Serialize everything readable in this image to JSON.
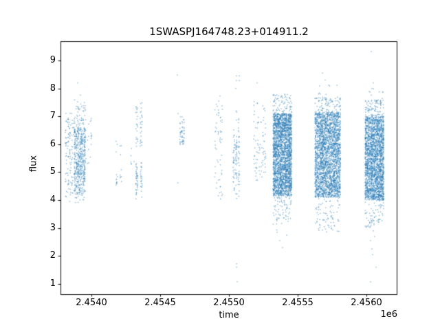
{
  "figure": {
    "background": "#ffffff"
  },
  "chart_data": {
    "type": "scatter",
    "title": "1SWASPJ164748.23+014911.2",
    "xlabel": "time",
    "ylabel": "flux",
    "x_offset_label": "1e6",
    "xlim": [
      2453775,
      2456225
    ],
    "ylim": [
      0.63,
      9.69
    ],
    "x_ticks": [
      2454000,
      2454500,
      2455000,
      2455500,
      2456000
    ],
    "x_tick_labels": [
      "2.4540",
      "2.4545",
      "2.4550",
      "2.4555",
      "2.4560"
    ],
    "y_ticks": [
      1,
      2,
      3,
      4,
      5,
      6,
      7,
      8,
      9
    ],
    "y_tick_labels": [
      "1",
      "2",
      "3",
      "4",
      "5",
      "6",
      "7",
      "8",
      "9"
    ],
    "grid": false,
    "legend": null,
    "marker_color": "#1f77b4",
    "marker_alpha": 0.55,
    "marker_size": 1.4,
    "axis_color": "#000000",
    "seed": 123456,
    "clusters": [
      {
        "name": "band-2453.8a",
        "t_min": 2453815,
        "t_max": 2453875,
        "streaks": 5,
        "segments": [
          {
            "flux_min": 4.1,
            "flux_max": 6.9,
            "count": 110
          },
          {
            "flux_min": 3.85,
            "flux_max": 7.15,
            "count": 20
          }
        ]
      },
      {
        "name": "band-2453.9-dense",
        "t_min": 2453880,
        "t_max": 2453950,
        "streaks": 7,
        "segments": [
          {
            "flux_min": 4.2,
            "flux_max": 6.6,
            "count": 380
          },
          {
            "flux_min": 4.8,
            "flux_max": 7.5,
            "count": 140
          },
          {
            "flux_min": 3.8,
            "flux_max": 4.2,
            "count": 12
          },
          {
            "flux_min": 7.5,
            "flux_max": 7.8,
            "count": 4
          }
        ]
      },
      {
        "name": "band-2453.97",
        "t_min": 2453955,
        "t_max": 2453995,
        "streaks": 3,
        "segments": [
          {
            "flux_min": 5.3,
            "flux_max": 7.05,
            "count": 26
          }
        ]
      },
      {
        "name": "band-2454.2",
        "t_min": 2454185,
        "t_max": 2454215,
        "streaks": 2,
        "segments": [
          {
            "flux_min": 4.5,
            "flux_max": 6.15,
            "count": 22
          }
        ]
      },
      {
        "name": "band-2454.3a",
        "t_min": 2454290,
        "t_max": 2454308,
        "streaks": 2,
        "segments": [
          {
            "flux_min": 5.2,
            "flux_max": 5.9,
            "count": 6
          }
        ]
      },
      {
        "name": "band-2454.35",
        "t_min": 2454330,
        "t_max": 2454362,
        "streaks": 2,
        "segments": [
          {
            "flux_min": 5.9,
            "flux_max": 7.5,
            "count": 48
          },
          {
            "flux_min": 4.25,
            "flux_max": 5.35,
            "count": 60
          },
          {
            "flux_min": 4.0,
            "flux_max": 4.25,
            "count": 4
          }
        ]
      },
      {
        "name": "band-2454.65",
        "t_min": 2454645,
        "t_max": 2454672,
        "streaks": 3,
        "segments": [
          {
            "flux_min": 5.95,
            "flux_max": 6.5,
            "count": 38
          },
          {
            "flux_min": 6.5,
            "flux_max": 7.05,
            "count": 14
          }
        ]
      },
      {
        "name": "band-2454.92",
        "t_min": 2454900,
        "t_max": 2454948,
        "streaks": 5,
        "segments": [
          {
            "flux_min": 4.0,
            "flux_max": 7.8,
            "count": 60
          }
        ]
      },
      {
        "name": "band-2455.05",
        "t_min": 2455035,
        "t_max": 2455072,
        "streaks": 3,
        "segments": [
          {
            "flux_min": 4.3,
            "flux_max": 6.3,
            "count": 70
          },
          {
            "flux_min": 4.05,
            "flux_max": 7.25,
            "count": 45
          }
        ]
      },
      {
        "name": "band-2455.22",
        "t_min": 2455185,
        "t_max": 2455262,
        "streaks": 7,
        "segments": [
          {
            "flux_min": 4.7,
            "flux_max": 7.0,
            "count": 72
          },
          {
            "flux_min": 7.0,
            "flux_max": 7.55,
            "count": 10
          }
        ]
      },
      {
        "name": "dense-2455.39",
        "t_min": 2455325,
        "t_max": 2455452,
        "streaks": 14,
        "segments": [
          {
            "flux_min": 4.15,
            "flux_max": 7.1,
            "count": 2450
          },
          {
            "flux_min": 7.1,
            "flux_max": 7.8,
            "count": 80
          },
          {
            "flux_min": 3.3,
            "flux_max": 4.15,
            "count": 70
          },
          {
            "flux_min": 2.9,
            "flux_max": 3.3,
            "count": 6
          }
        ]
      },
      {
        "name": "dense-2455.72",
        "t_min": 2455630,
        "t_max": 2455807,
        "streaks": 18,
        "segments": [
          {
            "flux_min": 4.1,
            "flux_max": 7.15,
            "count": 2650
          },
          {
            "flux_min": 7.15,
            "flux_max": 7.7,
            "count": 90
          },
          {
            "flux_min": 7.7,
            "flux_max": 8.2,
            "count": 8
          },
          {
            "flux_min": 2.85,
            "flux_max": 4.1,
            "count": 80
          }
        ]
      },
      {
        "name": "dense-2456.06",
        "t_min": 2455995,
        "t_max": 2456122,
        "streaks": 13,
        "segments": [
          {
            "flux_min": 4.0,
            "flux_max": 7.0,
            "count": 2250
          },
          {
            "flux_min": 7.0,
            "flux_max": 7.6,
            "count": 90
          },
          {
            "flux_min": 7.6,
            "flux_max": 8.0,
            "count": 8
          },
          {
            "flux_min": 3.0,
            "flux_max": 4.0,
            "count": 70
          }
        ]
      }
    ],
    "outlier_points": [
      [
        2453900,
        8.2
      ],
      [
        2454625,
        8.48
      ],
      [
        2454630,
        7.1
      ],
      [
        2454628,
        4.62
      ],
      [
        2455055,
        8.45
      ],
      [
        2455075,
        8.45
      ],
      [
        2455055,
        8.28
      ],
      [
        2455075,
        8.28
      ],
      [
        2455050,
        8.0
      ],
      [
        2455056,
        1.72
      ],
      [
        2455056,
        1.6
      ],
      [
        2455060,
        1.08
      ],
      [
        2455205,
        8.2
      ],
      [
        2455350,
        2.85
      ],
      [
        2455370,
        2.55
      ],
      [
        2455390,
        2.3
      ],
      [
        2455420,
        2.75
      ],
      [
        2455680,
        8.55
      ],
      [
        2455700,
        8.3
      ],
      [
        2456035,
        9.32
      ],
      [
        2456050,
        8.2
      ],
      [
        2456040,
        8.0
      ],
      [
        2456030,
        2.55
      ],
      [
        2456040,
        2.25
      ],
      [
        2456045,
        2.05
      ],
      [
        2456070,
        1.6
      ],
      [
        2456030,
        1.07
      ],
      [
        2456050,
        2.9
      ],
      [
        2456060,
        2.7
      ]
    ]
  }
}
